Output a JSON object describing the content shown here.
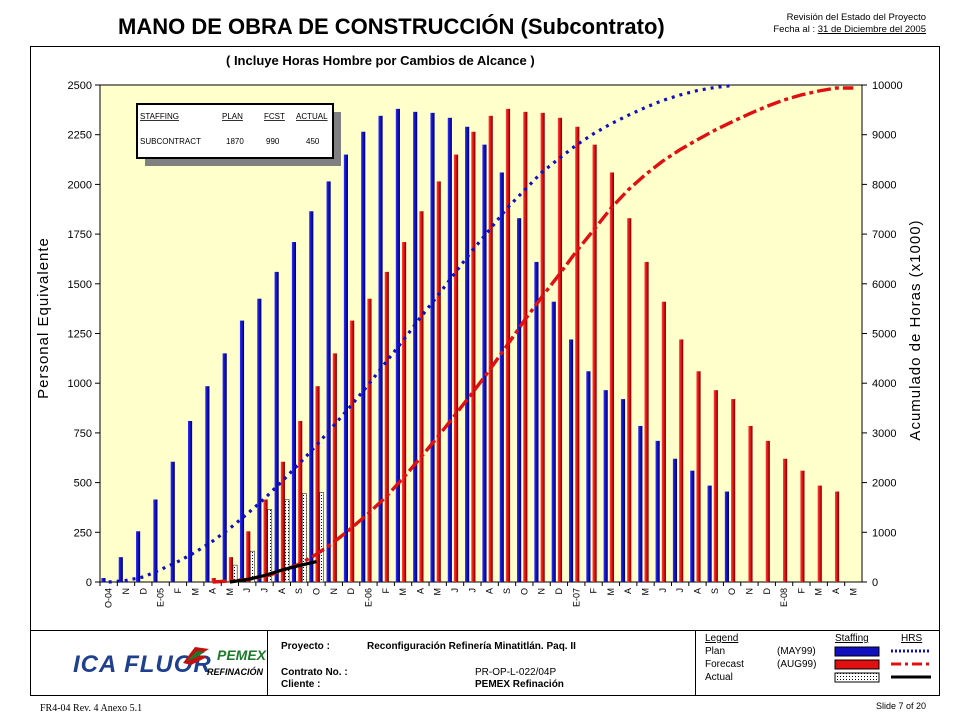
{
  "header": {
    "title": "MANO DE OBRA DE CONSTRUCCIÓN (Subcontrato)",
    "rev_line1": "Revisión del Estado del Proyecto",
    "rev_label": "Fecha al :",
    "rev_date": "31 de Diciembre del 2005"
  },
  "chart_data": {
    "type": "bar",
    "title": "( Incluye Horas Hombre por Cambios de Alcance )",
    "ylabel": "Personal Equivalente",
    "y2label": "Acumulado de Horas (x1000)",
    "ylim": [
      0,
      2500
    ],
    "y2lim": [
      0,
      10000
    ],
    "yticks": [
      "0",
      "250",
      "500",
      "750",
      "1000",
      "1250",
      "1500",
      "1750",
      "2000",
      "2250",
      "2500"
    ],
    "y2ticks": [
      "0",
      "1000",
      "2000",
      "3000",
      "4000",
      "5000",
      "6000",
      "7000",
      "8000",
      "9000",
      "10000"
    ],
    "grid": false,
    "categories": [
      "O-04",
      "N",
      "D",
      "E-05",
      "F",
      "M",
      "A",
      "M",
      "J",
      "J",
      "A",
      "S",
      "O",
      "N",
      "D",
      "E-06",
      "F",
      "M",
      "A",
      "M",
      "J",
      "J",
      "A",
      "S",
      "O",
      "N",
      "D",
      "E-07",
      "F",
      "M",
      "A",
      "M",
      "J",
      "J",
      "A",
      "S",
      "O",
      "N",
      "D",
      "E-08",
      "F",
      "M",
      "A",
      "M"
    ],
    "series": [
      {
        "name": "Plan",
        "kind": "bar",
        "color": "#1010c0",
        "values": [
          20,
          125,
          255,
          415,
          605,
          810,
          985,
          1150,
          1315,
          1425,
          1560,
          1710,
          1865,
          2015,
          2150,
          2265,
          2345,
          2380,
          2365,
          2360,
          2335,
          2290,
          2200,
          2060,
          1830,
          1610,
          1410,
          1220,
          1060,
          965,
          920,
          785,
          710,
          620,
          560,
          485,
          455,
          null,
          null,
          null,
          null,
          null,
          null,
          null
        ]
      },
      {
        "name": "Forecast",
        "kind": "bar",
        "color": "#e01010",
        "values": [
          null,
          null,
          null,
          null,
          null,
          null,
          20,
          125,
          255,
          415,
          605,
          810,
          985,
          1150,
          1315,
          1425,
          1560,
          1710,
          1865,
          2015,
          2150,
          2265,
          2345,
          2380,
          2365,
          2360,
          2335,
          2290,
          2200,
          2060,
          1830,
          1610,
          1410,
          1220,
          1060,
          965,
          920,
          785,
          710,
          620,
          560,
          485,
          455,
          null
        ]
      },
      {
        "name": "Actual",
        "kind": "bar",
        "color": "#ffffff",
        "values": [
          null,
          null,
          null,
          null,
          null,
          null,
          null,
          85,
          155,
          365,
          415,
          445,
          450,
          null,
          null,
          null,
          null,
          null,
          null,
          null,
          null,
          null,
          null,
          null,
          null,
          null,
          null,
          null,
          null,
          null,
          null,
          null,
          null,
          null,
          null,
          null,
          null,
          null,
          null,
          null,
          null,
          null,
          null,
          null
        ]
      },
      {
        "name": "Plan HRS",
        "kind": "line",
        "axis": "right",
        "color": "#1010c0",
        "values": [
          0,
          30,
          100,
          250,
          410,
          600,
          820,
          1080,
          1370,
          1680,
          2020,
          2380,
          2750,
          3150,
          3550,
          3970,
          4420,
          4860,
          5320,
          5760,
          6220,
          6670,
          7090,
          7520,
          7880,
          8240,
          8520,
          8790,
          9020,
          9220,
          9390,
          9550,
          9690,
          9800,
          9890,
          9950,
          9990,
          null,
          null,
          null,
          null,
          null,
          null,
          null
        ]
      },
      {
        "name": "Forecast HRS",
        "kind": "line",
        "axis": "right",
        "color": "#e01010",
        "values": [
          null,
          null,
          null,
          null,
          null,
          null,
          0,
          20,
          50,
          110,
          220,
          360,
          560,
          800,
          1080,
          1380,
          1710,
          2090,
          2500,
          2920,
          3360,
          3800,
          4270,
          4760,
          5260,
          5730,
          6180,
          6650,
          7080,
          7520,
          7890,
          8200,
          8470,
          8700,
          8900,
          9090,
          9260,
          9420,
          9570,
          9700,
          9800,
          9880,
          9940,
          9940
        ]
      },
      {
        "name": "Actual HRS",
        "kind": "line",
        "axis": "right",
        "color": "#000000",
        "values": [
          null,
          null,
          null,
          null,
          null,
          null,
          null,
          0,
          50,
          130,
          240,
          330,
          410,
          null,
          null,
          null,
          null,
          null,
          null,
          null,
          null,
          null,
          null,
          null,
          null,
          null,
          null,
          null,
          null,
          null,
          null,
          null,
          null,
          null,
          null,
          null,
          null,
          null,
          null,
          null,
          null,
          null,
          null,
          null
        ]
      }
    ],
    "inset": {
      "headers": [
        "STAFFING",
        "PLAN",
        "FCST",
        "ACTUAL"
      ],
      "row": [
        "SUBCONTRACT",
        "1870",
        "990",
        "450"
      ]
    }
  },
  "footer": {
    "logo_ica": "ICA FLUOR",
    "logo_pemex": "PEMEX",
    "logo_refinacion": "REFINACIÓN",
    "proyecto_label": "Proyecto :",
    "proyecto_value": "Reconfiguración Refinería Minatitlán.  Paq. II",
    "contrato_label": "Contrato No. :",
    "contrato_value": "PR-OP-L-022/04P",
    "cliente_label": "Cliente :",
    "cliente_value": "PEMEX Refinación",
    "legend_title": "Legend",
    "legend_staffing": "Staffing",
    "legend_hrs": "HRS",
    "legend_plan": "Plan",
    "legend_plan_note": "(MAY99)",
    "legend_forecast": "Forecast",
    "legend_forecast_note": "(AUG99)",
    "legend_actual": "Actual",
    "form_code": "FR4-04 Rev. 4  Anexo 5.1",
    "slide": "Slide 7 of 20"
  }
}
